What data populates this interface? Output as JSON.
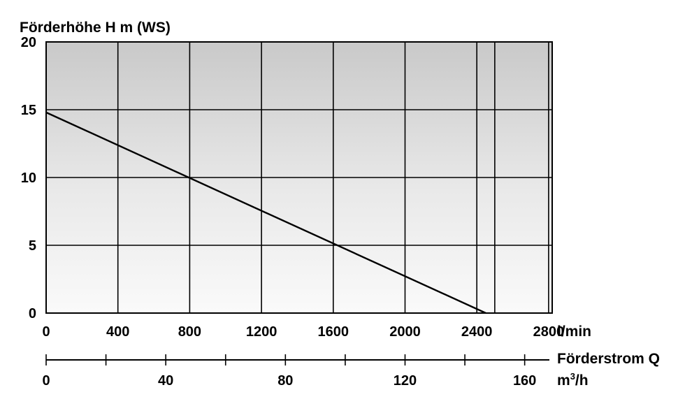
{
  "chart_data": {
    "type": "line",
    "title": "Förderhöhe H m (WS)",
    "ylabel": "",
    "ylim": [
      0,
      20
    ],
    "y_ticks": [
      "0",
      "5",
      "10",
      "15",
      "20"
    ],
    "x_ticks_lmin": [
      "0",
      "400",
      "800",
      "1200",
      "1600",
      "2000",
      "2400",
      "2800"
    ],
    "x_unit_top": "l/min",
    "x_axis_label": "Förderstrom Q",
    "x_ticks_m3h": [
      "0",
      "40",
      "80",
      "120",
      "160"
    ],
    "x_unit_bottom_base": "m",
    "x_unit_bottom_sup": "3",
    "x_unit_bottom_tail": "/h",
    "grid": true,
    "series": [
      {
        "x": [
          0,
          2450
        ],
        "y": [
          14.8,
          0
        ]
      }
    ]
  }
}
